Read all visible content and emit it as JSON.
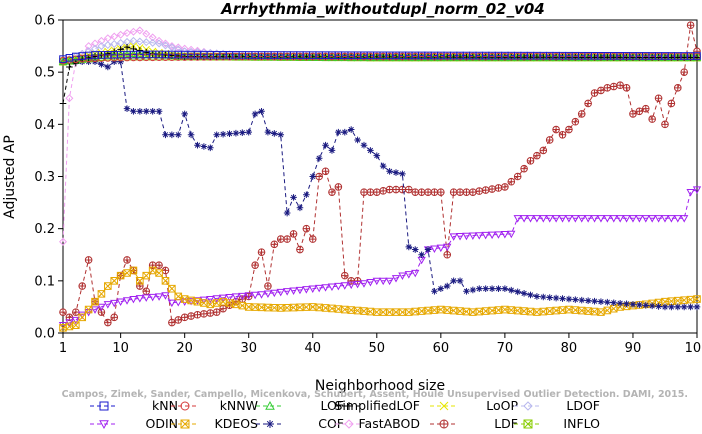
{
  "chart_data": {
    "type": "line",
    "title": "Arrhythmia_withoutdupl_norm_02_v04",
    "xlabel": "Neighborhood size",
    "ylabel": "Adjusted AP",
    "xlim": [
      1,
      100
    ],
    "ylim": [
      0,
      0.6
    ],
    "x_ticks": [
      1,
      10,
      20,
      30,
      40,
      50,
      60,
      70,
      80,
      90,
      100
    ],
    "y_ticks": [
      0.0,
      0.1,
      0.2,
      0.3,
      0.4,
      0.5,
      0.6
    ],
    "x_tick_labels": [
      "1",
      "10",
      "20",
      "30",
      "40",
      "50",
      "60",
      "70",
      "80",
      "90",
      "100"
    ],
    "y_tick_labels": [
      "0.0",
      "0.1",
      "0.2",
      "0.3",
      "0.4",
      "0.5",
      "0.6"
    ],
    "legend_position": "bottom",
    "watermark": "Campos, Zimek, Sander, Campello, Micenkova, Schubert, Assent, Houle  Unsupervised Outlier Detection. DAMI, 2015.",
    "series": [
      {
        "name": "kNN",
        "color": "#1a1acc",
        "marker": "square",
        "knots": [
          [
            1,
            0.525
          ],
          [
            3,
            0.53
          ],
          [
            6,
            0.533
          ],
          [
            15,
            0.534
          ],
          [
            30,
            0.533
          ],
          [
            60,
            0.532
          ],
          [
            100,
            0.531
          ]
        ]
      },
      {
        "name": "kNNW",
        "color": "#d43a3a",
        "marker": "circle",
        "knots": [
          [
            1,
            0.522
          ],
          [
            4,
            0.526
          ],
          [
            10,
            0.528
          ],
          [
            30,
            0.53
          ],
          [
            60,
            0.53
          ],
          [
            100,
            0.53
          ]
        ]
      },
      {
        "name": "LOF",
        "color": "#33cc33",
        "marker": "triangle-up",
        "knots": [
          [
            1,
            0.52
          ],
          [
            3,
            0.522
          ],
          [
            6,
            0.53
          ],
          [
            12,
            0.535
          ],
          [
            20,
            0.53
          ],
          [
            40,
            0.528
          ],
          [
            100,
            0.528
          ]
        ]
      },
      {
        "name": "SimplifiedLOF",
        "color": "#000000",
        "marker": "plus",
        "knots": [
          [
            1,
            0.44
          ],
          [
            2,
            0.51
          ],
          [
            4,
            0.525
          ],
          [
            8,
            0.535
          ],
          [
            11,
            0.548
          ],
          [
            15,
            0.535
          ],
          [
            20,
            0.53
          ],
          [
            100,
            0.528
          ]
        ]
      },
      {
        "name": "LoOP",
        "color": "#e6e600",
        "marker": "x",
        "knots": [
          [
            1,
            0.52
          ],
          [
            4,
            0.53
          ],
          [
            8,
            0.54
          ],
          [
            12,
            0.55
          ],
          [
            15,
            0.54
          ],
          [
            20,
            0.53
          ],
          [
            100,
            0.528
          ]
        ]
      },
      {
        "name": "LDOF",
        "color": "#b8b8ee",
        "marker": "diamond",
        "knots": [
          [
            1,
            0.52
          ],
          [
            4,
            0.535
          ],
          [
            7,
            0.55
          ],
          [
            12,
            0.56
          ],
          [
            16,
            0.555
          ],
          [
            20,
            0.54
          ],
          [
            30,
            0.532
          ],
          [
            100,
            0.53
          ]
        ]
      },
      {
        "name": "ODIN",
        "color": "#a020f0",
        "marker": "triangle-down",
        "knots": [
          [
            1,
            0.015
          ],
          [
            2,
            0.02
          ],
          [
            3,
            0.025
          ],
          [
            4,
            0.035
          ],
          [
            5,
            0.04
          ],
          [
            6,
            0.045
          ],
          [
            8,
            0.055
          ],
          [
            10,
            0.06
          ],
          [
            12,
            0.065
          ],
          [
            14,
            0.068
          ],
          [
            16,
            0.07
          ],
          [
            17,
            0.072
          ],
          [
            18,
            0.058
          ],
          [
            20,
            0.06
          ],
          [
            24,
            0.065
          ],
          [
            28,
            0.07
          ],
          [
            32,
            0.074
          ],
          [
            36,
            0.08
          ],
          [
            40,
            0.085
          ],
          [
            44,
            0.09
          ],
          [
            48,
            0.095
          ],
          [
            50,
            0.1
          ],
          [
            52,
            0.1
          ],
          [
            54,
            0.11
          ],
          [
            56,
            0.115
          ],
          [
            57,
            0.14
          ],
          [
            58,
            0.16
          ],
          [
            61,
            0.165
          ],
          [
            62,
            0.185
          ],
          [
            71,
            0.19
          ],
          [
            72,
            0.22
          ],
          [
            88,
            0.22
          ],
          [
            98,
            0.22
          ],
          [
            99,
            0.27
          ],
          [
            100,
            0.275
          ]
        ]
      },
      {
        "name": "KDEOS",
        "color": "#e6a800",
        "marker": "square-x",
        "knots": [
          [
            1,
            0.01
          ],
          [
            3,
            0.015
          ],
          [
            4,
            0.03
          ],
          [
            5,
            0.045
          ],
          [
            6,
            0.06
          ],
          [
            7,
            0.075
          ],
          [
            8,
            0.09
          ],
          [
            9,
            0.1
          ],
          [
            10,
            0.11
          ],
          [
            11,
            0.115
          ],
          [
            12,
            0.12
          ],
          [
            13,
            0.1
          ],
          [
            14,
            0.11
          ],
          [
            15,
            0.12
          ],
          [
            16,
            0.115
          ],
          [
            17,
            0.1
          ],
          [
            18,
            0.085
          ],
          [
            19,
            0.07
          ],
          [
            20,
            0.065
          ],
          [
            22,
            0.06
          ],
          [
            24,
            0.055
          ],
          [
            26,
            0.06
          ],
          [
            28,
            0.055
          ],
          [
            30,
            0.05
          ],
          [
            35,
            0.048
          ],
          [
            40,
            0.05
          ],
          [
            45,
            0.045
          ],
          [
            50,
            0.04
          ],
          [
            55,
            0.04
          ],
          [
            60,
            0.045
          ],
          [
            65,
            0.04
          ],
          [
            70,
            0.045
          ],
          [
            75,
            0.04
          ],
          [
            80,
            0.045
          ],
          [
            85,
            0.04
          ],
          [
            88,
            0.05
          ],
          [
            92,
            0.055
          ],
          [
            95,
            0.06
          ],
          [
            100,
            0.065
          ]
        ]
      },
      {
        "name": "COF",
        "color": "#1a1a80",
        "marker": "asterisk",
        "knots": [
          [
            1,
            0.52
          ],
          [
            3,
            0.52
          ],
          [
            6,
            0.52
          ],
          [
            8,
            0.51
          ],
          [
            9,
            0.52
          ],
          [
            10,
            0.52
          ],
          [
            11,
            0.43
          ],
          [
            12,
            0.425
          ],
          [
            16,
            0.425
          ],
          [
            17,
            0.38
          ],
          [
            19,
            0.38
          ],
          [
            20,
            0.42
          ],
          [
            21,
            0.38
          ],
          [
            22,
            0.36
          ],
          [
            24,
            0.355
          ],
          [
            25,
            0.38
          ],
          [
            30,
            0.385
          ],
          [
            31,
            0.42
          ],
          [
            32,
            0.425
          ],
          [
            33,
            0.385
          ],
          [
            35,
            0.38
          ],
          [
            36,
            0.23
          ],
          [
            37,
            0.26
          ],
          [
            38,
            0.24
          ],
          [
            39,
            0.265
          ],
          [
            40,
            0.3
          ],
          [
            41,
            0.335
          ],
          [
            42,
            0.36
          ],
          [
            43,
            0.35
          ],
          [
            44,
            0.385
          ],
          [
            45,
            0.385
          ],
          [
            46,
            0.39
          ],
          [
            47,
            0.37
          ],
          [
            48,
            0.36
          ],
          [
            49,
            0.35
          ],
          [
            50,
            0.34
          ],
          [
            51,
            0.32
          ],
          [
            52,
            0.31
          ],
          [
            54,
            0.305
          ],
          [
            55,
            0.165
          ],
          [
            56,
            0.16
          ],
          [
            57,
            0.15
          ],
          [
            58,
            0.16
          ],
          [
            59,
            0.08
          ],
          [
            60,
            0.085
          ],
          [
            61,
            0.09
          ],
          [
            62,
            0.1
          ],
          [
            63,
            0.1
          ],
          [
            64,
            0.08
          ],
          [
            66,
            0.085
          ],
          [
            70,
            0.085
          ],
          [
            75,
            0.07
          ],
          [
            80,
            0.065
          ],
          [
            85,
            0.06
          ],
          [
            90,
            0.055
          ],
          [
            95,
            0.05
          ],
          [
            100,
            0.05
          ]
        ]
      },
      {
        "name": "FastABOD",
        "color": "#f0a0f0",
        "marker": "diamond",
        "knots": [
          [
            1,
            0.175
          ],
          [
            2,
            0.45
          ],
          [
            3,
            0.52
          ],
          [
            5,
            0.55
          ],
          [
            8,
            0.565
          ],
          [
            11,
            0.575
          ],
          [
            13,
            0.58
          ],
          [
            16,
            0.56
          ],
          [
            18,
            0.55
          ],
          [
            20,
            0.545
          ],
          [
            25,
            0.535
          ],
          [
            30,
            0.532
          ],
          [
            100,
            0.53
          ]
        ]
      },
      {
        "name": "LDF",
        "color": "#b03030",
        "marker": "circle-plus",
        "knots": [
          [
            1,
            0.04
          ],
          [
            2,
            0.03
          ],
          [
            3,
            0.04
          ],
          [
            4,
            0.09
          ],
          [
            5,
            0.14
          ],
          [
            6,
            0.06
          ],
          [
            8,
            0.02
          ],
          [
            9,
            0.03
          ],
          [
            10,
            0.11
          ],
          [
            11,
            0.14
          ],
          [
            12,
            0.12
          ],
          [
            13,
            0.09
          ],
          [
            14,
            0.08
          ],
          [
            15,
            0.13
          ],
          [
            16,
            0.13
          ],
          [
            17,
            0.12
          ],
          [
            18,
            0.02
          ],
          [
            19,
            0.025
          ],
          [
            20,
            0.03
          ],
          [
            22,
            0.035
          ],
          [
            25,
            0.04
          ],
          [
            28,
            0.06
          ],
          [
            30,
            0.07
          ],
          [
            31,
            0.13
          ],
          [
            32,
            0.155
          ],
          [
            33,
            0.09
          ],
          [
            34,
            0.17
          ],
          [
            35,
            0.18
          ],
          [
            36,
            0.18
          ],
          [
            37,
            0.19
          ],
          [
            38,
            0.16
          ],
          [
            39,
            0.2
          ],
          [
            40,
            0.18
          ],
          [
            41,
            0.3
          ],
          [
            42,
            0.31
          ],
          [
            43,
            0.27
          ],
          [
            44,
            0.28
          ],
          [
            45,
            0.11
          ],
          [
            46,
            0.1
          ],
          [
            47,
            0.1
          ],
          [
            48,
            0.27
          ],
          [
            50,
            0.27
          ],
          [
            52,
            0.275
          ],
          [
            55,
            0.275
          ],
          [
            56,
            0.27
          ],
          [
            60,
            0.27
          ],
          [
            61,
            0.15
          ],
          [
            62,
            0.27
          ],
          [
            65,
            0.27
          ],
          [
            70,
            0.28
          ],
          [
            72,
            0.3
          ],
          [
            74,
            0.33
          ],
          [
            76,
            0.35
          ],
          [
            78,
            0.39
          ],
          [
            79,
            0.38
          ],
          [
            80,
            0.39
          ],
          [
            82,
            0.42
          ],
          [
            84,
            0.46
          ],
          [
            86,
            0.47
          ],
          [
            88,
            0.475
          ],
          [
            89,
            0.47
          ],
          [
            90,
            0.42
          ],
          [
            92,
            0.43
          ],
          [
            93,
            0.41
          ],
          [
            94,
            0.45
          ],
          [
            95,
            0.4
          ],
          [
            96,
            0.44
          ],
          [
            98,
            0.5
          ],
          [
            99,
            0.59
          ],
          [
            100,
            0.54
          ]
        ]
      },
      {
        "name": "INFLO",
        "color": "#88cc00",
        "marker": "square-x",
        "knots": [
          [
            1,
            0.52
          ],
          [
            4,
            0.525
          ],
          [
            8,
            0.53
          ],
          [
            20,
            0.53
          ],
          [
            50,
            0.528
          ],
          [
            100,
            0.528
          ]
        ]
      }
    ]
  }
}
